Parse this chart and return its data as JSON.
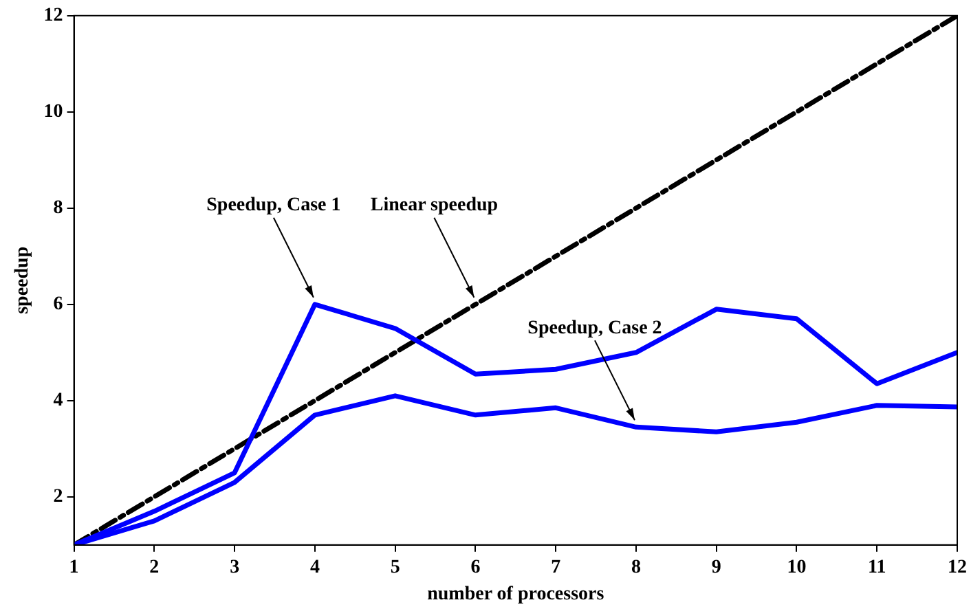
{
  "chart_data": {
    "type": "line",
    "xlabel": "number of processors",
    "ylabel": "speedup",
    "x": [
      1,
      2,
      3,
      4,
      5,
      6,
      7,
      8,
      9,
      10,
      11,
      12
    ],
    "series": [
      {
        "color": "#0000ff",
        "values": [
          1,
          1.7,
          2.5,
          6.0,
          5.5,
          4.55,
          4.65,
          5.0,
          5.9,
          5.7,
          4.35,
          5.0
        ]
      },
      {
        "color": "#0000ff",
        "values": [
          1,
          1.5,
          2.3,
          3.7,
          4.1,
          3.7,
          3.85,
          3.45,
          3.35,
          3.55,
          3.9,
          3.87
        ]
      },
      {
        "color": "#000000",
        "line_style": "dashed",
        "values": [
          1,
          2,
          3,
          4,
          5,
          6,
          7,
          8,
          9,
          10,
          11,
          12
        ]
      }
    ],
    "xlim": [
      1,
      12
    ],
    "xticks": [
      1,
      2,
      3,
      4,
      5,
      6,
      7,
      8,
      9,
      10,
      11,
      12
    ],
    "ylim": [
      1,
      12
    ],
    "yticks": [
      2,
      4,
      6,
      8,
      10,
      12
    ],
    "grid": false,
    "legend": false,
    "marker": "none",
    "annotations": [
      {
        "text": "Speedup, Case 1",
        "x": 4,
        "y": 6
      },
      {
        "text": "Linear speedup",
        "x": 6,
        "y": 6
      },
      {
        "text": "Speedup, Case 2",
        "x": 8,
        "y": 3.45
      }
    ]
  }
}
